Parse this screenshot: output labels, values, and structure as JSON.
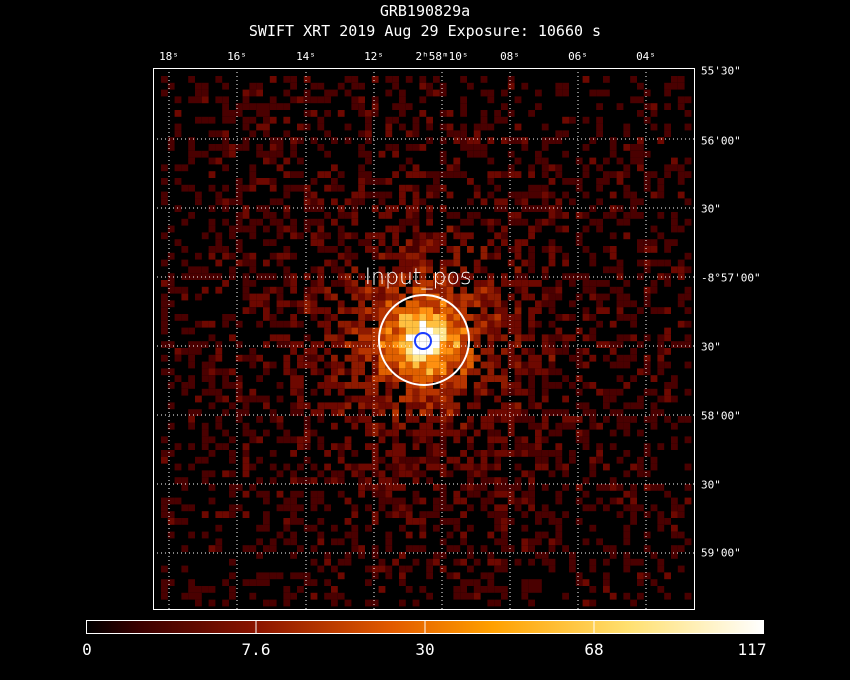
{
  "header": {
    "object_name": "GRB190829a",
    "instrument_line": "SWIFT XRT   2019 Aug 29    Exposure: 10660 s"
  },
  "ra_ticks": [
    "18ˢ",
    "16ˢ",
    "14ˢ",
    "12ˢ",
    "2ʰ58ᵐ10ˢ",
    "08ˢ",
    "06ˢ",
    "04ˢ"
  ],
  "dec_ticks": [
    "55'30\"",
    "56'00\"",
    "30\"",
    "-8°57'00\"",
    "30\"",
    "58'00\"",
    "30\"",
    "59'00\""
  ],
  "source": {
    "label": "Input_pos"
  },
  "colorbar": {
    "ticks": [
      "0",
      "7.6",
      "30",
      "68",
      "117"
    ],
    "colors": [
      "#000000",
      "#5a0000",
      "#b42800",
      "#ff8c00",
      "#ffd040",
      "#ffffff"
    ]
  },
  "colors": {
    "background": "#000000",
    "grid": "#ffffff",
    "source_circle": "#ffffff",
    "marker_circle": "#1a3cff"
  }
}
